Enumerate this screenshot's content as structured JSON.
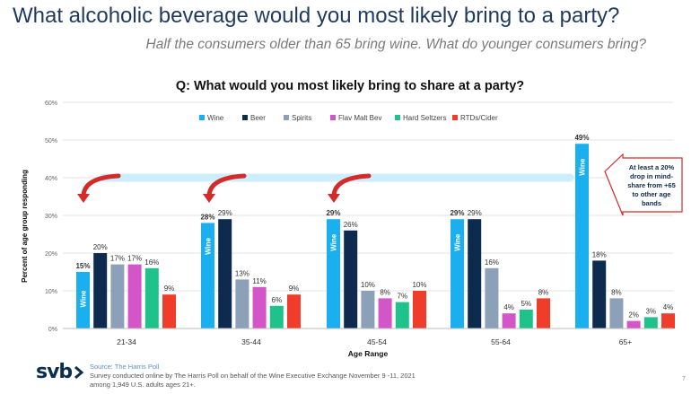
{
  "header": {
    "title": "What alcoholic beverage would you most likely bring to a party?",
    "subtitle": "Half the consumers older than 65 bring wine. What do younger consumers bring?"
  },
  "colors": {
    "Wine": "#1ab0f0",
    "Beer": "#0d2a4f",
    "Spirits": "#8ca0b8",
    "Flav Malt Bev": "#d455c8",
    "Hard Seltzers": "#1fc28a",
    "RTDs/Cider": "#f03c2a",
    "trend_line": "#cdeefc",
    "arrow": "#d32a2a"
  },
  "chart_data": {
    "type": "bar",
    "title": "Q: What would you most likely bring to share at a party?",
    "xlabel": "Age Range",
    "ylabel": "Percent of age group responding",
    "ylim": [
      0,
      60
    ],
    "yticks": [
      "0%",
      "10%",
      "20%",
      "30%",
      "40%",
      "50%",
      "60%"
    ],
    "categories": [
      "21-34",
      "35-44",
      "45-54",
      "55-64",
      "65+"
    ],
    "legend_position": "top",
    "series": [
      {
        "name": "Wine",
        "values": [
          15,
          28,
          29,
          29,
          49
        ],
        "labels": [
          "15%",
          "28%",
          "29%",
          "29%",
          "49%"
        ]
      },
      {
        "name": "Beer",
        "values": [
          20,
          29,
          26,
          29,
          18
        ],
        "labels": [
          "20%",
          "29%",
          "26%",
          "29%",
          "18%"
        ]
      },
      {
        "name": "Spirits",
        "values": [
          17,
          13,
          10,
          16,
          8
        ],
        "labels": [
          "17%",
          "13%",
          "10%",
          "16%",
          "8%"
        ]
      },
      {
        "name": "Flav Malt Bev",
        "values": [
          17,
          11,
          8,
          4,
          2
        ],
        "labels": [
          "17%",
          "11%",
          "8%",
          "4%",
          "2%"
        ]
      },
      {
        "name": "Hard Seltzers",
        "values": [
          16,
          6,
          7,
          5,
          3
        ],
        "labels": [
          "16%",
          "6%",
          "7%",
          "5%",
          "3%"
        ]
      },
      {
        "name": "RTDs/Cider",
        "values": [
          9,
          9,
          10,
          8,
          4
        ],
        "labels": [
          "9%",
          "9%",
          "10%",
          "8%",
          "4%"
        ]
      }
    ],
    "bar_inner_label": "Wine",
    "annotation": "At least a 20% drop in mind-share from +65 to other age bands",
    "trend_line_value": 40
  },
  "footer": {
    "logo": "svb",
    "source": "Source: The Harris Poll",
    "line2": "Survey conducted online by The Harris Poll on behalf of the Wine Executive Exchange November 9 -11, 2021",
    "line3": "among 1,949 U.S. adults ages 21+.",
    "page_number": "7"
  }
}
